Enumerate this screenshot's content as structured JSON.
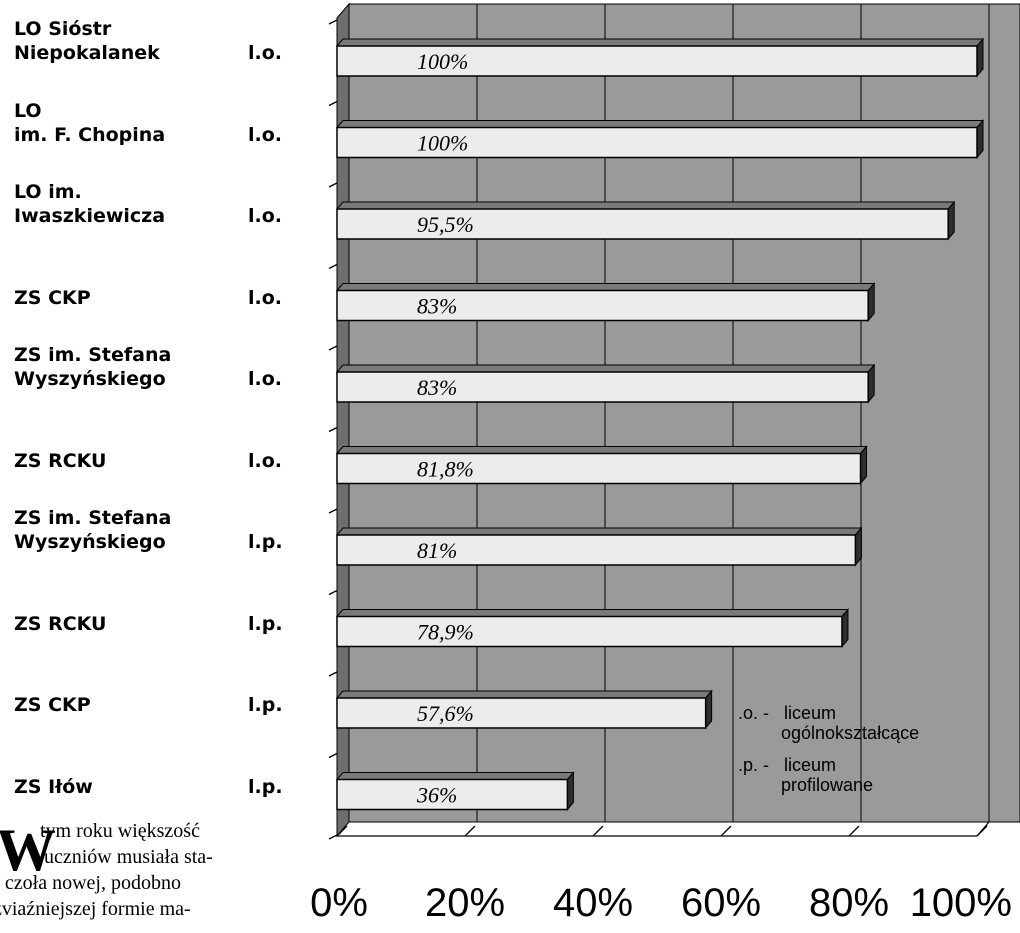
{
  "chart_data": {
    "type": "bar",
    "orientation": "horizontal",
    "categories": [
      {
        "lines": [
          "LO Sióstr",
          "Niepokalanek"
        ],
        "type": "l.o."
      },
      {
        "lines": [
          "LO",
          "im. F. Chopina"
        ],
        "type": "l.o."
      },
      {
        "lines": [
          "LO im.",
          "Iwaszkiewicza"
        ],
        "type": "l.o."
      },
      {
        "lines": [
          "ZS CKP"
        ],
        "type": "l.o."
      },
      {
        "lines": [
          "ZS im. Stefana",
          "Wyszyńskiego"
        ],
        "type": "l.o."
      },
      {
        "lines": [
          "ZS RCKU"
        ],
        "type": "l.o."
      },
      {
        "lines": [
          "ZS im. Stefana",
          "Wyszyńskiego"
        ],
        "type": "l.p."
      },
      {
        "lines": [
          "ZS RCKU"
        ],
        "type": "l.p."
      },
      {
        "lines": [
          "ZS CKP"
        ],
        "type": "l.p."
      },
      {
        "lines": [
          "ZS Iłów"
        ],
        "type": "l.p."
      }
    ],
    "values": [
      100,
      100,
      95.5,
      83,
      83,
      81.8,
      81,
      78.9,
      57.6,
      36
    ],
    "value_labels": [
      "100%",
      "100%",
      "95,5%",
      "83%",
      "83%",
      "81,8%",
      "81%",
      "78,9%",
      "57,6%",
      "36%"
    ],
    "xlim": [
      0,
      100
    ],
    "xticks": [
      "0%",
      "20%",
      "40%",
      "60%",
      "80%",
      "100%"
    ],
    "legend": {
      "placement": "bottom-right",
      "entries": [
        {
          "abbr": ".o. -",
          "lines": [
            "liceum",
            "ogólnokształcące"
          ]
        },
        {
          "abbr": ".p. -",
          "lines": [
            "liceum",
            "profilowane"
          ]
        }
      ]
    },
    "grid": true,
    "style": "3d",
    "colors": {
      "plot_bg": "#9a9a9a",
      "side_wall": "#6e6e6e",
      "bar_face": "#ececec",
      "bar_top": "#7a7a7a",
      "bar_side": "#2e2e2e",
      "grid": "#222222"
    }
  },
  "article": {
    "dropcap": "W",
    "lines": [
      "tym roku większość",
      "uczniów musiała sta-",
      "ć czoła nowej, podobno",
      "zviaźniejszej formie ma-"
    ]
  }
}
